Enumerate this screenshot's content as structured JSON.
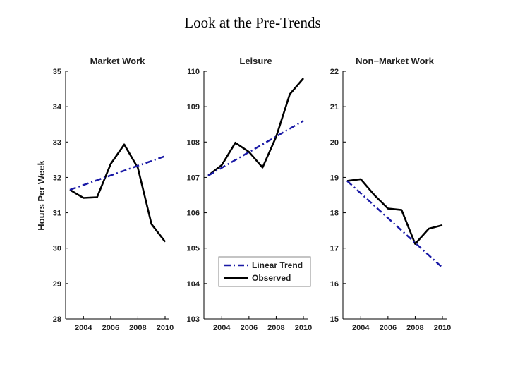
{
  "slide_title": "Look at the Pre-Trends",
  "colors": {
    "trend": "#1a1aa6",
    "observed": "#000000",
    "axis": "#000000"
  },
  "shared_ylabel": "Hours Per Week",
  "legend": {
    "trend_label": "Linear Trend",
    "observed_label": "Observed",
    "placement": "bottom-right of Leisure panel"
  },
  "chart_data": [
    {
      "type": "line",
      "title": "Market Work",
      "xlim": [
        2003,
        2010
      ],
      "xticks": [
        2004,
        2006,
        2008,
        2010
      ],
      "ylim": [
        28,
        35
      ],
      "yticks": [
        28,
        29,
        30,
        31,
        32,
        33,
        34,
        35
      ],
      "series": [
        {
          "name": "Observed",
          "x": [
            2003,
            2004,
            2005,
            2006,
            2007,
            2008,
            2009,
            2010
          ],
          "y": [
            31.65,
            31.42,
            31.44,
            32.38,
            32.93,
            32.27,
            30.68,
            30.18
          ]
        },
        {
          "name": "Linear Trend",
          "x": [
            2003,
            2010
          ],
          "y": [
            31.65,
            32.6
          ]
        }
      ]
    },
    {
      "type": "line",
      "title": "Leisure",
      "xlim": [
        2003,
        2010
      ],
      "xticks": [
        2004,
        2006,
        2008,
        2010
      ],
      "ylim": [
        103,
        110
      ],
      "yticks": [
        103,
        104,
        105,
        106,
        107,
        108,
        109,
        110
      ],
      "series": [
        {
          "name": "Observed",
          "x": [
            2003,
            2004,
            2005,
            2006,
            2007,
            2008,
            2009,
            2010
          ],
          "y": [
            107.05,
            107.35,
            107.98,
            107.72,
            107.28,
            108.15,
            109.35,
            109.8
          ]
        },
        {
          "name": "Linear Trend",
          "x": [
            2003,
            2010
          ],
          "y": [
            107.05,
            108.6
          ]
        }
      ]
    },
    {
      "type": "line",
      "title": "Non−Market Work",
      "xlim": [
        2003,
        2010
      ],
      "xticks": [
        2004,
        2006,
        2008,
        2010
      ],
      "ylim": [
        15,
        22
      ],
      "yticks": [
        15,
        16,
        17,
        18,
        19,
        20,
        21,
        22
      ],
      "series": [
        {
          "name": "Observed",
          "x": [
            2003,
            2004,
            2005,
            2006,
            2007,
            2008,
            2009,
            2010
          ],
          "y": [
            18.9,
            18.95,
            18.5,
            18.12,
            18.08,
            17.12,
            17.55,
            17.65
          ]
        },
        {
          "name": "Linear Trend",
          "x": [
            2003,
            2010
          ],
          "y": [
            18.9,
            16.45
          ]
        }
      ]
    }
  ]
}
